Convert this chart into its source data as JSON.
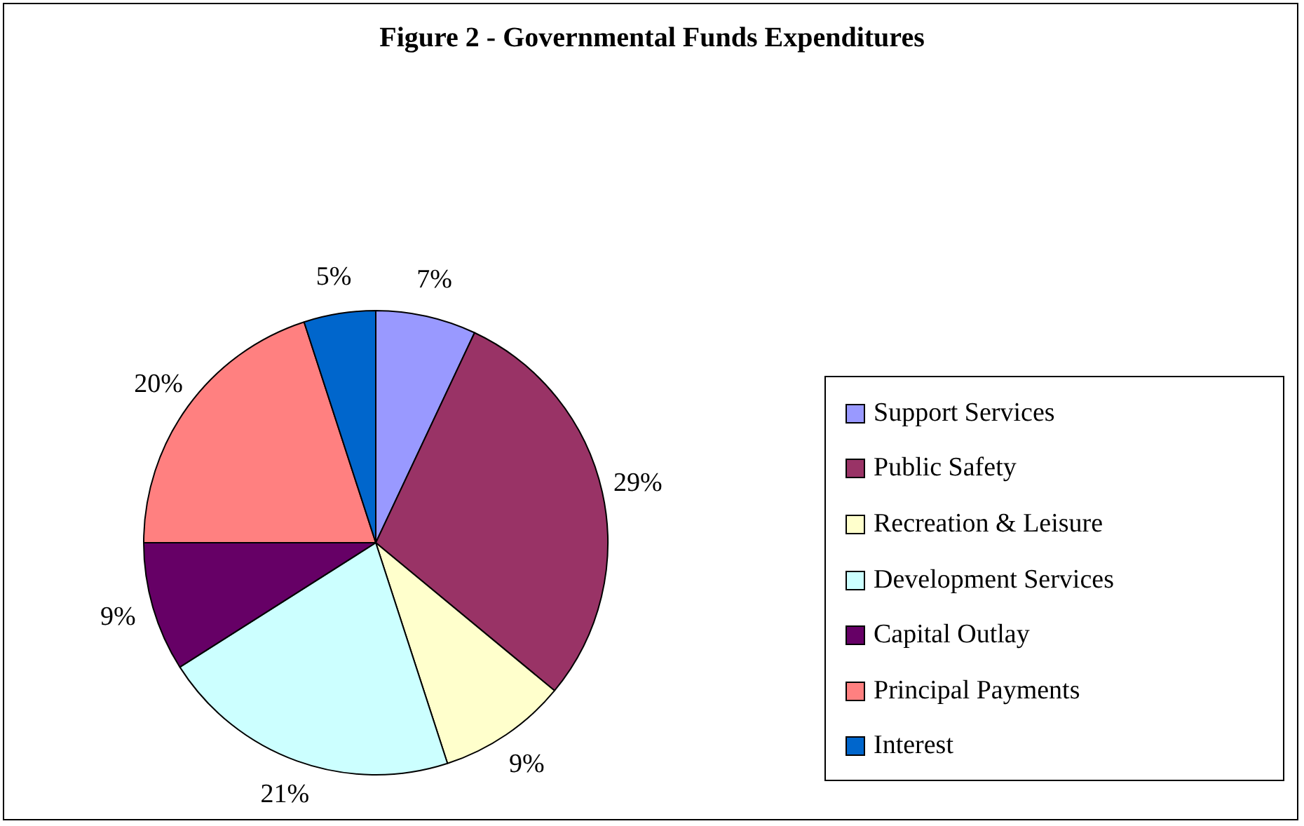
{
  "chart_data": {
    "type": "pie",
    "title": "Figure 2 - Governmental Funds Expenditures",
    "categories": [
      "Support Services",
      "Public Safety",
      "Recreation & Leisure",
      "Development Services",
      "Capital Outlay",
      "Principal Payments",
      "Interest"
    ],
    "values": [
      7,
      29,
      9,
      21,
      9,
      20,
      5
    ],
    "value_labels": [
      "7%",
      "29%",
      "9%",
      "21%",
      "9%",
      "20%",
      "5%"
    ],
    "colors": [
      "#9999ff",
      "#993366",
      "#ffffcc",
      "#ccffff",
      "#660066",
      "#ff8080",
      "#0066cc"
    ],
    "legend": "right"
  }
}
